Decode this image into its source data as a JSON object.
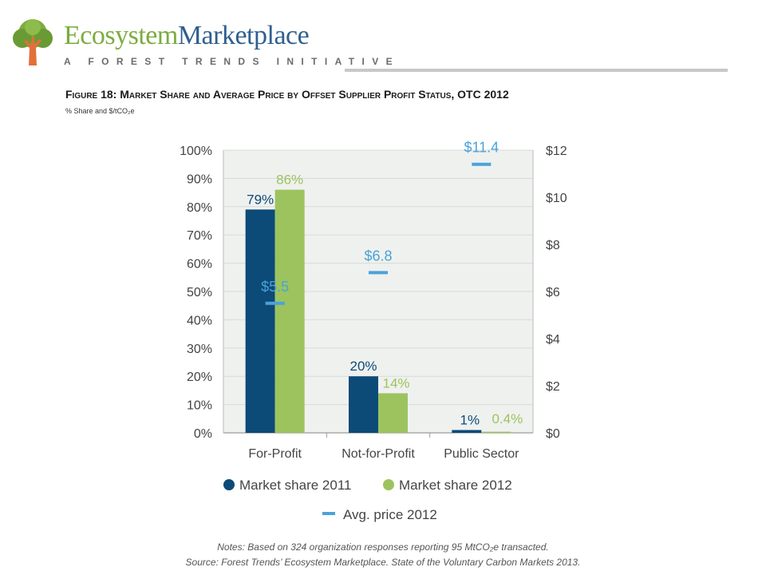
{
  "brand": {
    "name_part1": "Ecosystem",
    "name_part2": "Marketplace",
    "tagline": "A FOREST TRENDS INITIATIVE"
  },
  "figure": {
    "title": "Figure 18: Market Share and Average Price by Offset Supplier Profit Status, OTC 2012",
    "subtitle": "% Share and $/tCO₂e"
  },
  "notes": {
    "line1": "Notes: Based on 324 organization responses reporting 95 MtCO₂e transacted.",
    "line2": "Source: Forest Trends’ Ecosystem Marketplace. State of the Voluntary Carbon Markets 2013."
  },
  "colors": {
    "market_share_2011": "#0c4a78",
    "market_share_2012": "#9dc35f",
    "avg_price_2012": "#4aa3d9",
    "plot_bg": "#eff1ef"
  },
  "chart_data": {
    "type": "bar",
    "categories": [
      "For-Profit",
      "Not-for-Profit",
      "Public Sector"
    ],
    "series": [
      {
        "name": "Market share 2011",
        "axis": "left",
        "values": [
          79,
          20,
          1
        ],
        "labels": [
          "79%",
          "20%",
          "1%"
        ],
        "color": "#0c4a78"
      },
      {
        "name": "Market share 2012",
        "axis": "left",
        "values": [
          86,
          14,
          0.4
        ],
        "labels": [
          "86%",
          "14%",
          "0.4%"
        ],
        "color": "#9dc35f"
      },
      {
        "name": "Avg. price 2012",
        "axis": "right",
        "marker": "dash",
        "values": [
          5.5,
          6.8,
          11.4
        ],
        "labels": [
          "$5.5",
          "$6.8",
          "$11.4"
        ],
        "color": "#4aa3d9"
      }
    ],
    "y_left": {
      "ylim": [
        0,
        100
      ],
      "ticks": [
        0,
        10,
        20,
        30,
        40,
        50,
        60,
        70,
        80,
        90,
        100
      ],
      "tick_labels": [
        "0%",
        "10%",
        "20%",
        "30%",
        "40%",
        "50%",
        "60%",
        "70%",
        "80%",
        "90%",
        "100%"
      ]
    },
    "y_right": {
      "ylim": [
        0,
        12
      ],
      "ticks": [
        0,
        2,
        4,
        6,
        8,
        10,
        12
      ],
      "tick_labels": [
        "$0",
        "$2",
        "$4",
        "$6",
        "$8",
        "$10",
        "$12"
      ]
    },
    "grid": true,
    "legend_position": "bottom"
  }
}
